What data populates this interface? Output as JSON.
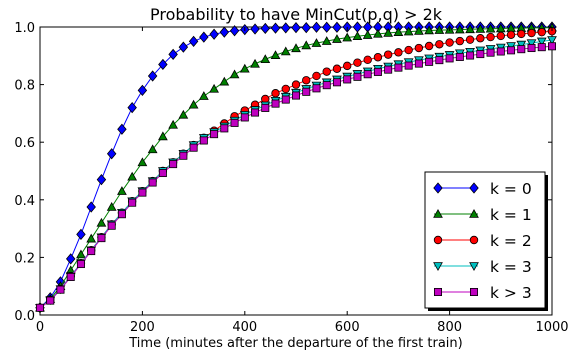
{
  "chart_data": {
    "type": "line",
    "title": "Probability to have MinCut(p,q) > 2k",
    "xlabel": "Time (minutes after the departure of the first train)",
    "ylabel": "",
    "xlim": [
      0,
      1000
    ],
    "ylim": [
      0,
      1.0
    ],
    "xticks": [
      "0",
      "200",
      "400",
      "600",
      "800",
      "1000"
    ],
    "yticks": [
      "0.0",
      "0.2",
      "0.4",
      "0.6",
      "0.8",
      "1.0"
    ],
    "grid": false,
    "legend_position": "bottom-right",
    "series": [
      {
        "name": "k = 0",
        "marker": "diamond",
        "color": "#0000ff",
        "x": [
          0,
          20,
          40,
          60,
          80,
          100,
          120,
          140,
          160,
          180,
          200,
          220,
          240,
          260,
          280,
          300,
          320,
          340,
          360,
          380,
          400,
          420,
          440,
          460,
          480,
          500,
          520,
          540,
          560,
          580,
          600,
          620,
          640,
          660,
          680,
          700,
          720,
          740,
          760,
          780,
          800,
          820,
          840,
          860,
          880,
          900,
          920,
          940,
          960,
          980,
          1000
        ],
        "y": [
          0.025,
          0.06,
          0.115,
          0.195,
          0.28,
          0.375,
          0.47,
          0.56,
          0.645,
          0.72,
          0.78,
          0.83,
          0.87,
          0.905,
          0.93,
          0.95,
          0.965,
          0.975,
          0.982,
          0.987,
          0.991,
          0.993,
          0.995,
          0.996,
          0.997,
          0.998,
          0.998,
          0.999,
          0.999,
          0.999,
          1.0,
          1.0,
          1.0,
          1.0,
          1.0,
          1.0,
          1.0,
          1.0,
          1.0,
          1.0,
          1.0,
          1.0,
          1.0,
          1.0,
          1.0,
          1.0,
          1.0,
          1.0,
          1.0,
          1.0,
          1.0
        ]
      },
      {
        "name": "k = 1",
        "marker": "triangle-up",
        "color": "#008000",
        "x": [
          0,
          20,
          40,
          60,
          80,
          100,
          120,
          140,
          160,
          180,
          200,
          220,
          240,
          260,
          280,
          300,
          320,
          340,
          360,
          380,
          400,
          420,
          440,
          460,
          480,
          500,
          520,
          540,
          560,
          580,
          600,
          620,
          640,
          660,
          680,
          700,
          720,
          740,
          760,
          780,
          800,
          820,
          840,
          860,
          880,
          900,
          920,
          940,
          960,
          980,
          1000
        ],
        "y": [
          0.025,
          0.055,
          0.1,
          0.155,
          0.21,
          0.265,
          0.32,
          0.375,
          0.43,
          0.48,
          0.53,
          0.575,
          0.62,
          0.66,
          0.695,
          0.73,
          0.76,
          0.785,
          0.81,
          0.835,
          0.855,
          0.872,
          0.888,
          0.902,
          0.915,
          0.926,
          0.936,
          0.944,
          0.951,
          0.958,
          0.963,
          0.968,
          0.972,
          0.976,
          0.979,
          0.982,
          0.984,
          0.986,
          0.988,
          0.989,
          0.99,
          0.991,
          0.992,
          0.993,
          0.994,
          0.995,
          0.996,
          0.996,
          0.997,
          0.997,
          0.998
        ]
      },
      {
        "name": "k = 2",
        "marker": "circle",
        "color": "#ff0000",
        "x": [
          0,
          20,
          40,
          60,
          80,
          100,
          120,
          140,
          160,
          180,
          200,
          220,
          240,
          260,
          280,
          300,
          320,
          340,
          360,
          380,
          400,
          420,
          440,
          460,
          480,
          500,
          520,
          540,
          560,
          580,
          600,
          620,
          640,
          660,
          680,
          700,
          720,
          740,
          760,
          780,
          800,
          820,
          840,
          860,
          880,
          900,
          920,
          940,
          960,
          980,
          1000
        ],
        "y": [
          0.025,
          0.052,
          0.09,
          0.135,
          0.18,
          0.225,
          0.27,
          0.315,
          0.355,
          0.395,
          0.43,
          0.465,
          0.5,
          0.53,
          0.56,
          0.59,
          0.615,
          0.64,
          0.665,
          0.69,
          0.71,
          0.73,
          0.75,
          0.77,
          0.785,
          0.8,
          0.815,
          0.83,
          0.845,
          0.855,
          0.865,
          0.876,
          0.886,
          0.895,
          0.904,
          0.912,
          0.92,
          0.927,
          0.934,
          0.94,
          0.946,
          0.951,
          0.956,
          0.961,
          0.965,
          0.969,
          0.973,
          0.976,
          0.979,
          0.982,
          0.985
        ]
      },
      {
        "name": "k = 3",
        "marker": "triangle-down",
        "color": "#00bfbf",
        "x": [
          0,
          20,
          40,
          60,
          80,
          100,
          120,
          140,
          160,
          180,
          200,
          220,
          240,
          260,
          280,
          300,
          320,
          340,
          360,
          380,
          400,
          420,
          440,
          460,
          480,
          500,
          520,
          540,
          560,
          580,
          600,
          620,
          640,
          660,
          680,
          700,
          720,
          740,
          760,
          780,
          800,
          820,
          840,
          860,
          880,
          900,
          920,
          940,
          960,
          980,
          1000
        ],
        "y": [
          0.025,
          0.052,
          0.09,
          0.135,
          0.18,
          0.225,
          0.27,
          0.315,
          0.355,
          0.395,
          0.43,
          0.465,
          0.5,
          0.53,
          0.56,
          0.59,
          0.615,
          0.635,
          0.655,
          0.675,
          0.695,
          0.712,
          0.728,
          0.744,
          0.758,
          0.772,
          0.785,
          0.797,
          0.808,
          0.818,
          0.828,
          0.837,
          0.846,
          0.855,
          0.863,
          0.871,
          0.878,
          0.885,
          0.891,
          0.897,
          0.903,
          0.909,
          0.914,
          0.919,
          0.924,
          0.929,
          0.934,
          0.939,
          0.944,
          0.95,
          0.955
        ]
      },
      {
        "name": "k > 3",
        "marker": "square",
        "color": "#bf00bf",
        "x": [
          0,
          20,
          40,
          60,
          80,
          100,
          120,
          140,
          160,
          180,
          200,
          220,
          240,
          260,
          280,
          300,
          320,
          340,
          360,
          380,
          400,
          420,
          440,
          460,
          480,
          500,
          520,
          540,
          560,
          580,
          600,
          620,
          640,
          660,
          680,
          700,
          720,
          740,
          760,
          780,
          800,
          820,
          840,
          860,
          880,
          900,
          920,
          940,
          960,
          980,
          1000
        ],
        "y": [
          0.025,
          0.05,
          0.088,
          0.132,
          0.177,
          0.222,
          0.267,
          0.31,
          0.35,
          0.39,
          0.425,
          0.46,
          0.493,
          0.524,
          0.553,
          0.581,
          0.606,
          0.628,
          0.648,
          0.667,
          0.686,
          0.703,
          0.719,
          0.734,
          0.748,
          0.762,
          0.775,
          0.787,
          0.798,
          0.808,
          0.818,
          0.827,
          0.836,
          0.844,
          0.852,
          0.859,
          0.866,
          0.873,
          0.879,
          0.885,
          0.891,
          0.896,
          0.901,
          0.906,
          0.911,
          0.915,
          0.919,
          0.923,
          0.927,
          0.93,
          0.933
        ]
      }
    ]
  }
}
